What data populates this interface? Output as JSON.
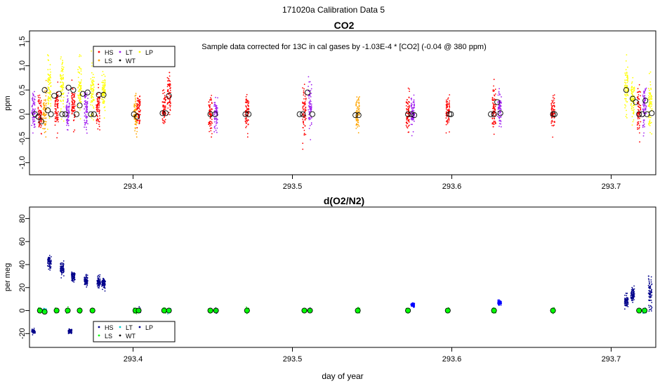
{
  "figure_title": "171020a   Calibration Data 5",
  "xlabel": "day of year",
  "colors": {
    "HS": "#ff0000",
    "LS": "#ffa500",
    "LT": "#a020f0",
    "WT": "#000000",
    "LP": "#ffff00",
    "O2_dark": "#00008b",
    "O2_light": "#00ff00",
    "O2_mid": "#00ced1",
    "O2_blue": "#0000ff"
  },
  "chart_data": [
    {
      "type": "scatter",
      "title": "CO2",
      "annotation": "Sample data corrected for 13C in cal gases by -1.03E-4 * [CO2] (-0.04 @ 380 ppm)",
      "xlabel": "",
      "ylabel": "ppm",
      "xlim": [
        293.335,
        293.728
      ],
      "ylim": [
        -1.25,
        1.72
      ],
      "xticks": [
        "293.4",
        "293.5",
        "293.6",
        "293.7"
      ],
      "xtick_values": [
        293.4,
        293.5,
        293.6,
        293.7
      ],
      "yticks": [
        "-1.0",
        "-0.5",
        "0.0",
        "0.5",
        "1.0",
        "1.5"
      ],
      "ytick_values": [
        -1.0,
        -0.5,
        0.0,
        0.5,
        1.0,
        1.5
      ],
      "legend": {
        "position": "top-left",
        "entries": [
          {
            "label": "HS",
            "color": "#ff0000"
          },
          {
            "label": "LS",
            "color": "#ffa500"
          },
          {
            "label": "LT",
            "color": "#a020f0"
          },
          {
            "label": "WT",
            "color": "#000000"
          },
          {
            "label": "LP",
            "color": "#ffff00"
          }
        ]
      },
      "clusters": [
        {
          "x": 293.3375,
          "center": 0.1,
          "spread": 0.45,
          "color": "LT"
        },
        {
          "x": 293.3415,
          "center": 0.0,
          "spread": 0.4,
          "color": "HS"
        },
        {
          "x": 293.3445,
          "center": 0.05,
          "spread": 0.5,
          "color": "LS"
        },
        {
          "x": 293.3475,
          "center": 0.55,
          "spread": 0.55,
          "color": "LP"
        },
        {
          "x": 293.352,
          "center": 0.1,
          "spread": 0.45,
          "color": "HS"
        },
        {
          "x": 293.3555,
          "center": 0.55,
          "spread": 0.6,
          "color": "LP"
        },
        {
          "x": 293.359,
          "center": 0.05,
          "spread": 0.45,
          "color": "LT"
        },
        {
          "x": 293.3625,
          "center": 0.15,
          "spread": 0.4,
          "color": "HS"
        },
        {
          "x": 293.3665,
          "center": 0.55,
          "spread": 0.6,
          "color": "LP"
        },
        {
          "x": 293.3705,
          "center": 0.1,
          "spread": 0.45,
          "color": "LT"
        },
        {
          "x": 293.3745,
          "center": 0.45,
          "spread": 0.6,
          "color": "LP"
        },
        {
          "x": 293.378,
          "center": 0.1,
          "spread": 0.45,
          "color": "HS"
        },
        {
          "x": 293.3815,
          "center": 0.5,
          "spread": 0.45,
          "color": "LP"
        },
        {
          "x": 293.4015,
          "center": 0.0,
          "spread": 0.4,
          "color": "LS"
        },
        {
          "x": 293.4035,
          "center": 0.05,
          "spread": 0.4,
          "color": "HS"
        },
        {
          "x": 293.4195,
          "center": 0.1,
          "spread": 0.4,
          "color": "HS"
        },
        {
          "x": 293.4225,
          "center": 0.4,
          "spread": 0.45,
          "color": "HS"
        },
        {
          "x": 293.4485,
          "center": 0.0,
          "spread": 0.4,
          "color": "HS"
        },
        {
          "x": 293.452,
          "center": 0.0,
          "spread": 0.35,
          "color": "LT"
        },
        {
          "x": 293.4715,
          "center": 0.0,
          "spread": 0.4,
          "color": "HS"
        },
        {
          "x": 293.5075,
          "center": 0.1,
          "spread": 0.55,
          "color": "HS"
        },
        {
          "x": 293.511,
          "center": 0.2,
          "spread": 0.55,
          "color": "LT"
        },
        {
          "x": 293.541,
          "center": 0.0,
          "spread": 0.4,
          "color": "LS"
        },
        {
          "x": 293.5725,
          "center": 0.05,
          "spread": 0.4,
          "color": "HS"
        },
        {
          "x": 293.5755,
          "center": 0.0,
          "spread": 0.4,
          "color": "LT"
        },
        {
          "x": 293.5975,
          "center": 0.05,
          "spread": 0.4,
          "color": "HS"
        },
        {
          "x": 293.6265,
          "center": 0.1,
          "spread": 0.55,
          "color": "HS"
        },
        {
          "x": 293.63,
          "center": 0.1,
          "spread": 0.45,
          "color": "LT"
        },
        {
          "x": 293.6635,
          "center": 0.0,
          "spread": 0.35,
          "color": "HS"
        },
        {
          "x": 293.7095,
          "center": 0.45,
          "spread": 0.55,
          "color": "LP"
        },
        {
          "x": 293.7135,
          "center": 0.3,
          "spread": 0.55,
          "color": "LP"
        },
        {
          "x": 293.7175,
          "center": 0.1,
          "spread": 0.45,
          "color": "HS"
        },
        {
          "x": 293.721,
          "center": 0.2,
          "spread": 0.55,
          "color": "LT"
        },
        {
          "x": 293.7245,
          "center": 0.25,
          "spread": 0.55,
          "color": "LP"
        }
      ],
      "means": [
        {
          "x": 293.3385,
          "y": 0.0
        },
        {
          "x": 293.3405,
          "y": -0.05
        },
        {
          "x": 293.3425,
          "y": -0.15
        },
        {
          "x": 293.3445,
          "y": 0.5
        },
        {
          "x": 293.3465,
          "y": 0.08
        },
        {
          "x": 293.3485,
          "y": 0.0
        },
        {
          "x": 293.3505,
          "y": 0.38
        },
        {
          "x": 293.3535,
          "y": 0.42
        },
        {
          "x": 293.3555,
          "y": 0.0
        },
        {
          "x": 293.3575,
          "y": 0.0
        },
        {
          "x": 293.3595,
          "y": 0.55
        },
        {
          "x": 293.3625,
          "y": 0.5
        },
        {
          "x": 293.3645,
          "y": 0.0
        },
        {
          "x": 293.3665,
          "y": 0.18
        },
        {
          "x": 293.3685,
          "y": 0.42
        },
        {
          "x": 293.3715,
          "y": 0.45
        },
        {
          "x": 293.3735,
          "y": 0.0
        },
        {
          "x": 293.3755,
          "y": 0.0
        },
        {
          "x": 293.3785,
          "y": 0.4
        },
        {
          "x": 293.3815,
          "y": 0.4
        },
        {
          "x": 293.4005,
          "y": 0.0
        },
        {
          "x": 293.4025,
          "y": -0.05
        },
        {
          "x": 293.4185,
          "y": 0.02
        },
        {
          "x": 293.4205,
          "y": 0.02
        },
        {
          "x": 293.4225,
          "y": 0.38
        },
        {
          "x": 293.4485,
          "y": 0.0
        },
        {
          "x": 293.4515,
          "y": 0.0
        },
        {
          "x": 293.4705,
          "y": 0.0
        },
        {
          "x": 293.4725,
          "y": 0.0
        },
        {
          "x": 293.5045,
          "y": 0.0
        },
        {
          "x": 293.5065,
          "y": 0.0
        },
        {
          "x": 293.5095,
          "y": 0.45
        },
        {
          "x": 293.5125,
          "y": 0.0
        },
        {
          "x": 293.5395,
          "y": -0.02
        },
        {
          "x": 293.5415,
          "y": -0.02
        },
        {
          "x": 293.5725,
          "y": 0.0
        },
        {
          "x": 293.5745,
          "y": 0.0
        },
        {
          "x": 293.5765,
          "y": -0.02
        },
        {
          "x": 293.5985,
          "y": 0.0
        },
        {
          "x": 293.5995,
          "y": 0.0
        },
        {
          "x": 293.6245,
          "y": 0.0
        },
        {
          "x": 293.6265,
          "y": 0.0
        },
        {
          "x": 293.6285,
          "y": 0.25
        },
        {
          "x": 293.6305,
          "y": 0.02
        },
        {
          "x": 293.6635,
          "y": 0.0
        },
        {
          "x": 293.6645,
          "y": 0.0
        },
        {
          "x": 293.7095,
          "y": 0.5
        },
        {
          "x": 293.7135,
          "y": 0.32
        },
        {
          "x": 293.7155,
          "y": 0.25
        },
        {
          "x": 293.7175,
          "y": 0.0
        },
        {
          "x": 293.7195,
          "y": 0.0
        },
        {
          "x": 293.7215,
          "y": 0.28
        },
        {
          "x": 293.7225,
          "y": 0.0
        },
        {
          "x": 293.7255,
          "y": 0.02
        }
      ]
    },
    {
      "type": "scatter",
      "title": "d(O2/N2)",
      "xlabel": "day of year",
      "ylabel": "per meg",
      "xlim": [
        293.335,
        293.728
      ],
      "ylim": [
        -32,
        90
      ],
      "xticks": [
        "293.4",
        "293.5",
        "293.6",
        "293.7"
      ],
      "xtick_values": [
        293.4,
        293.5,
        293.6,
        293.7
      ],
      "yticks": [
        "-20",
        "0",
        "20",
        "40",
        "60",
        "80"
      ],
      "ytick_values": [
        -20,
        0,
        20,
        40,
        60,
        80
      ],
      "legend": {
        "position": "bottom-left",
        "entries": [
          {
            "label": "HS",
            "color": "#00008b"
          },
          {
            "label": "LS",
            "color": "#00ff00"
          },
          {
            "label": "LT",
            "color": "#00ced1"
          },
          {
            "label": "WT",
            "color": "#000000"
          },
          {
            "label": "LP",
            "color": "#00008b"
          }
        ]
      },
      "clusters": [
        {
          "x": 293.3375,
          "center": -18,
          "spread": 2,
          "color": "O2_dark"
        },
        {
          "x": 293.3415,
          "center": 0,
          "spread": 2,
          "color": "O2_light"
        },
        {
          "x": 293.3445,
          "center": 0,
          "spread": 2,
          "color": "O2_mid"
        },
        {
          "x": 293.3475,
          "center": 42,
          "spread": 5,
          "color": "O2_dark"
        },
        {
          "x": 293.352,
          "center": 0,
          "spread": 2,
          "color": "O2_light"
        },
        {
          "x": 293.3555,
          "center": 36,
          "spread": 6,
          "color": "O2_dark"
        },
        {
          "x": 293.359,
          "center": 0,
          "spread": 2,
          "color": "O2_light"
        },
        {
          "x": 293.3605,
          "center": -18,
          "spread": 2,
          "color": "O2_dark"
        },
        {
          "x": 293.3625,
          "center": 30,
          "spread": 5,
          "color": "O2_dark"
        },
        {
          "x": 293.3665,
          "center": 0,
          "spread": 2,
          "color": "O2_light"
        },
        {
          "x": 293.3705,
          "center": 26,
          "spread": 5,
          "color": "O2_dark"
        },
        {
          "x": 293.3745,
          "center": 0,
          "spread": 2,
          "color": "O2_light"
        },
        {
          "x": 293.3785,
          "center": 25,
          "spread": 6,
          "color": "O2_dark"
        },
        {
          "x": 293.3815,
          "center": 24,
          "spread": 5,
          "color": "O2_dark"
        },
        {
          "x": 293.4015,
          "center": 0,
          "spread": 2,
          "color": "O2_light"
        },
        {
          "x": 293.4035,
          "center": 0,
          "spread": 2,
          "color": "O2_dark"
        },
        {
          "x": 293.4195,
          "center": 0,
          "spread": 2,
          "color": "O2_light"
        },
        {
          "x": 293.4225,
          "center": 0,
          "spread": 2,
          "color": "O2_mid"
        },
        {
          "x": 293.4485,
          "center": 0,
          "spread": 2,
          "color": "O2_light"
        },
        {
          "x": 293.452,
          "center": 0,
          "spread": 2,
          "color": "O2_dark"
        },
        {
          "x": 293.4715,
          "center": 0,
          "spread": 2,
          "color": "O2_light"
        },
        {
          "x": 293.5075,
          "center": 0,
          "spread": 2,
          "color": "O2_light"
        },
        {
          "x": 293.511,
          "center": 0,
          "spread": 2,
          "color": "O2_dark"
        },
        {
          "x": 293.541,
          "center": 0,
          "spread": 2,
          "color": "O2_light"
        },
        {
          "x": 293.5725,
          "center": 0,
          "spread": 2,
          "color": "O2_light"
        },
        {
          "x": 293.5755,
          "center": 5,
          "spread": 2,
          "color": "O2_blue"
        },
        {
          "x": 293.5975,
          "center": 0,
          "spread": 2,
          "color": "O2_light"
        },
        {
          "x": 293.6265,
          "center": 0,
          "spread": 2,
          "color": "O2_light"
        },
        {
          "x": 293.63,
          "center": 7,
          "spread": 2,
          "color": "O2_blue"
        },
        {
          "x": 293.6635,
          "center": 0,
          "spread": 2,
          "color": "O2_light"
        },
        {
          "x": 293.7095,
          "center": 8,
          "spread": 6,
          "color": "O2_dark"
        },
        {
          "x": 293.7135,
          "center": 14,
          "spread": 6,
          "color": "O2_dark"
        },
        {
          "x": 293.7175,
          "center": 0,
          "spread": 2,
          "color": "O2_light"
        },
        {
          "x": 293.721,
          "center": 0,
          "spread": 2,
          "color": "O2_mid"
        },
        {
          "x": 293.7245,
          "center": 15,
          "spread": 15,
          "color": "O2_dark"
        }
      ],
      "means": [
        {
          "x": 293.3415,
          "y": 0
        },
        {
          "x": 293.3445,
          "y": -1
        },
        {
          "x": 293.352,
          "y": 0
        },
        {
          "x": 293.359,
          "y": 0
        },
        {
          "x": 293.3665,
          "y": 0
        },
        {
          "x": 293.3745,
          "y": 0
        },
        {
          "x": 293.4015,
          "y": 0
        },
        {
          "x": 293.4035,
          "y": 0
        },
        {
          "x": 293.4195,
          "y": 0
        },
        {
          "x": 293.4225,
          "y": 0
        },
        {
          "x": 293.4485,
          "y": 0
        },
        {
          "x": 293.452,
          "y": 0
        },
        {
          "x": 293.4715,
          "y": 0
        },
        {
          "x": 293.5075,
          "y": 0
        },
        {
          "x": 293.511,
          "y": 0
        },
        {
          "x": 293.541,
          "y": 0
        },
        {
          "x": 293.5725,
          "y": 0
        },
        {
          "x": 293.5975,
          "y": 0
        },
        {
          "x": 293.6265,
          "y": 0
        },
        {
          "x": 293.6635,
          "y": 0
        },
        {
          "x": 293.7175,
          "y": 0
        },
        {
          "x": 293.721,
          "y": 0
        }
      ]
    }
  ]
}
